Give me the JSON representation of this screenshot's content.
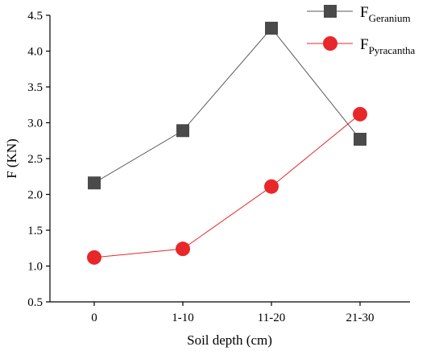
{
  "chart_data": {
    "type": "line",
    "categories": [
      "0",
      "1-10",
      "11-20",
      "21-30"
    ],
    "series": [
      {
        "name": "F",
        "subscript": "Geranium",
        "values": [
          2.16,
          2.89,
          4.32,
          2.77
        ],
        "color": "#595959",
        "marker": "square"
      },
      {
        "name": "F",
        "subscript": "Pyracantha",
        "values": [
          1.12,
          1.24,
          2.11,
          3.12
        ],
        "color": "#e8272a",
        "marker": "circle"
      }
    ],
    "title": "",
    "xlabel": "Soil depth (cm)",
    "ylabel": "F (KN)",
    "ylim": [
      0.5,
      4.5
    ],
    "yticks": [
      "0.5",
      "1.0",
      "1.5",
      "2.0",
      "2.5",
      "3.0",
      "3.5",
      "4.0",
      "4.5"
    ],
    "grid": false,
    "legend": "top-right"
  }
}
